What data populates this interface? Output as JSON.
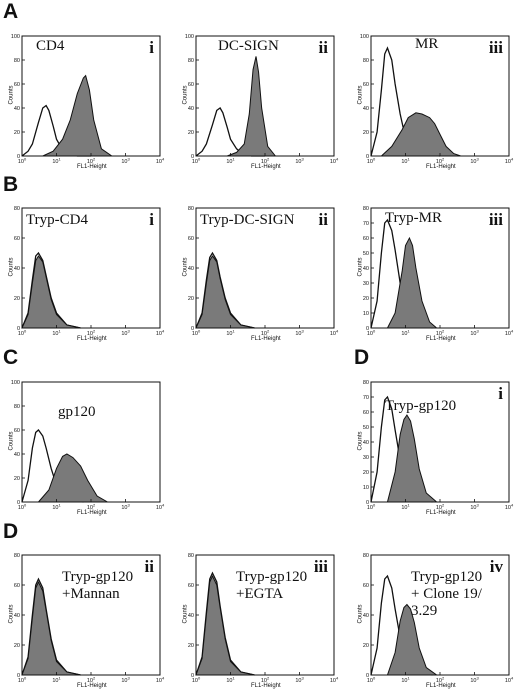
{
  "sections": {
    "A": "A",
    "B": "B",
    "C": "C",
    "D_top": "D",
    "D_bottom": "D"
  },
  "colors": {
    "filled": "#7a7a7a",
    "outline": "#111111"
  },
  "chart_data": [
    {
      "id": "A-i",
      "type": "area",
      "marker": "CD4",
      "roman": "i",
      "xlabel": "FL1-Height",
      "ylabel": "Counts",
      "xscale": "log",
      "xlim": [
        1,
        10000
      ],
      "ylim": [
        0,
        100
      ],
      "yticks": [
        0,
        20,
        40,
        60,
        80,
        100
      ],
      "series": [
        {
          "name": "",
          "style": "outline",
          "x": [
            1,
            1.5,
            2,
            3,
            4,
            5,
            6,
            8,
            10,
            15,
            20,
            40,
            100
          ],
          "values": [
            0,
            4,
            10,
            28,
            40,
            42,
            38,
            25,
            14,
            5,
            2,
            0,
            0
          ]
        },
        {
          "name": "",
          "style": "filled",
          "x": [
            4,
            8,
            15,
            25,
            40,
            60,
            70,
            90,
            120,
            200,
            400
          ],
          "values": [
            0,
            4,
            14,
            30,
            52,
            65,
            67,
            55,
            30,
            6,
            0
          ]
        }
      ]
    },
    {
      "id": "A-ii",
      "type": "area",
      "marker": "DC-SIGN",
      "roman": "ii",
      "xlabel": "FL1-Height",
      "ylabel": "Counts",
      "xscale": "log",
      "xlim": [
        1,
        10000
      ],
      "ylim": [
        0,
        100
      ],
      "yticks": [
        0,
        20,
        40,
        60,
        80,
        100
      ],
      "series": [
        {
          "name": "",
          "style": "outline",
          "x": [
            1,
            1.5,
            2,
            3,
            4,
            5,
            6,
            8,
            10,
            15,
            20,
            40,
            100
          ],
          "values": [
            0,
            4,
            10,
            26,
            38,
            40,
            36,
            24,
            14,
            6,
            3,
            0,
            0
          ]
        },
        {
          "name": "",
          "style": "filled",
          "x": [
            8,
            15,
            25,
            35,
            45,
            55,
            65,
            80,
            120,
            200
          ],
          "values": [
            0,
            3,
            10,
            35,
            72,
            83,
            70,
            40,
            8,
            0
          ]
        }
      ]
    },
    {
      "id": "A-iii",
      "type": "area",
      "marker": "MR",
      "roman": "iii",
      "xlabel": "FL1-Height",
      "ylabel": "Counts",
      "xscale": "log",
      "xlim": [
        1,
        10000
      ],
      "ylim": [
        0,
        100
      ],
      "yticks": [
        0,
        20,
        40,
        60,
        80,
        100
      ],
      "series": [
        {
          "name": "",
          "style": "outline",
          "x": [
            1,
            1.5,
            2,
            2.5,
            3,
            4,
            5,
            7,
            10,
            20,
            40,
            100
          ],
          "values": [
            0,
            20,
            55,
            85,
            90,
            80,
            60,
            35,
            15,
            4,
            1,
            0
          ]
        },
        {
          "name": "",
          "style": "filled",
          "x": [
            2,
            4,
            8,
            12,
            20,
            30,
            50,
            70,
            100,
            150,
            250,
            400
          ],
          "values": [
            0,
            8,
            22,
            32,
            36,
            35,
            32,
            27,
            18,
            8,
            2,
            0
          ]
        }
      ]
    },
    {
      "id": "B-i",
      "type": "area",
      "marker": "Tryp-CD4",
      "roman": "i",
      "xlabel": "FL1-Height",
      "ylabel": "Counts",
      "xscale": "log",
      "xlim": [
        1,
        10000
      ],
      "ylim": [
        0,
        80
      ],
      "yticks": [
        0,
        20,
        40,
        60,
        80
      ],
      "series": [
        {
          "name": "",
          "style": "outline",
          "x": [
            1,
            1.5,
            2,
            2.5,
            3,
            4,
            5,
            7,
            10,
            20,
            50
          ],
          "values": [
            0,
            10,
            32,
            48,
            50,
            45,
            35,
            20,
            10,
            2,
            0
          ]
        },
        {
          "name": "",
          "style": "filled",
          "x": [
            1,
            1.5,
            2,
            2.5,
            3,
            4,
            5,
            7,
            10,
            20,
            50
          ],
          "values": [
            0,
            9,
            30,
            45,
            48,
            44,
            34,
            19,
            9,
            2,
            0
          ]
        }
      ]
    },
    {
      "id": "B-ii",
      "type": "area",
      "marker": "Tryp-DC-SIGN",
      "roman": "ii",
      "xlabel": "FL1-Height",
      "ylabel": "Counts",
      "xscale": "log",
      "xlim": [
        1,
        10000
      ],
      "ylim": [
        0,
        80
      ],
      "yticks": [
        0,
        20,
        40,
        60,
        80
      ],
      "series": [
        {
          "name": "",
          "style": "outline",
          "x": [
            1,
            1.5,
            2,
            2.5,
            3,
            4,
            5,
            7,
            10,
            20,
            50
          ],
          "values": [
            0,
            10,
            32,
            47,
            50,
            45,
            34,
            20,
            10,
            2,
            0
          ]
        },
        {
          "name": "",
          "style": "filled",
          "x": [
            1,
            1.5,
            2,
            2.5,
            3,
            4,
            5,
            7,
            10,
            20,
            50
          ],
          "values": [
            0,
            9,
            30,
            45,
            48,
            44,
            33,
            19,
            9,
            2,
            0
          ]
        }
      ]
    },
    {
      "id": "B-iii",
      "type": "area",
      "marker": "Tryp-MR",
      "roman": "iii",
      "xlabel": "FL1-Height",
      "ylabel": "Counts",
      "xscale": "log",
      "xlim": [
        1,
        10000
      ],
      "ylim": [
        0,
        80
      ],
      "yticks": [
        0,
        10,
        20,
        30,
        40,
        50,
        60,
        70,
        80
      ],
      "series": [
        {
          "name": "",
          "style": "outline",
          "x": [
            1,
            1.5,
            2,
            2.5,
            3,
            4,
            5,
            7,
            10,
            15,
            30,
            60
          ],
          "values": [
            0,
            18,
            50,
            70,
            72,
            65,
            52,
            30,
            14,
            5,
            1,
            0
          ]
        },
        {
          "name": "",
          "style": "filled",
          "x": [
            3,
            5,
            8,
            10,
            13,
            16,
            20,
            30,
            50,
            80
          ],
          "values": [
            0,
            10,
            38,
            55,
            60,
            55,
            40,
            18,
            4,
            0
          ]
        }
      ]
    },
    {
      "id": "C",
      "type": "area",
      "marker": "gp120",
      "roman": "",
      "xlabel": "FL1-Height",
      "ylabel": "Counts",
      "xscale": "log",
      "xlim": [
        1,
        10000
      ],
      "ylim": [
        0,
        100
      ],
      "yticks": [
        0,
        20,
        40,
        60,
        80,
        100
      ],
      "series": [
        {
          "name": "",
          "style": "outline",
          "x": [
            1,
            1.5,
            2,
            2.5,
            3,
            4,
            5,
            7,
            10,
            15,
            30,
            60
          ],
          "values": [
            0,
            18,
            45,
            58,
            60,
            55,
            45,
            28,
            14,
            6,
            1,
            0
          ]
        },
        {
          "name": "",
          "style": "filled",
          "x": [
            3,
            6,
            10,
            15,
            20,
            30,
            50,
            80,
            150,
            300
          ],
          "values": [
            0,
            10,
            28,
            38,
            40,
            37,
            30,
            18,
            5,
            0
          ]
        }
      ]
    },
    {
      "id": "D-i",
      "type": "area",
      "marker": "Tryp-gp120",
      "roman": "i",
      "xlabel": "FL1-Height",
      "ylabel": "Counts",
      "xscale": "log",
      "xlim": [
        1,
        10000
      ],
      "ylim": [
        0,
        80
      ],
      "yticks": [
        0,
        10,
        20,
        30,
        40,
        50,
        60,
        70,
        80
      ],
      "series": [
        {
          "name": "",
          "style": "outline",
          "x": [
            1,
            1.5,
            2,
            2.5,
            3,
            4,
            5,
            7,
            10,
            15,
            30,
            60
          ],
          "values": [
            0,
            20,
            50,
            68,
            70,
            62,
            48,
            28,
            14,
            5,
            1,
            0
          ]
        },
        {
          "name": "",
          "style": "filled",
          "x": [
            3,
            5,
            7,
            9,
            11,
            14,
            18,
            25,
            40,
            80
          ],
          "values": [
            0,
            20,
            45,
            55,
            58,
            54,
            42,
            22,
            6,
            0
          ]
        }
      ]
    },
    {
      "id": "D-ii",
      "type": "area",
      "marker": "Tryp-gp120\n+Mannan",
      "roman": "ii",
      "xlabel": "FL1-Height",
      "ylabel": "Counts",
      "xscale": "log",
      "xlim": [
        1,
        10000
      ],
      "ylim": [
        0,
        80
      ],
      "yticks": [
        0,
        20,
        40,
        60,
        80
      ],
      "series": [
        {
          "name": "",
          "style": "outline",
          "x": [
            1,
            1.5,
            2,
            2.5,
            3,
            4,
            5,
            7,
            10,
            20,
            50
          ],
          "values": [
            0,
            12,
            40,
            60,
            64,
            58,
            44,
            24,
            10,
            2,
            0
          ]
        },
        {
          "name": "",
          "style": "filled",
          "x": [
            1,
            1.5,
            2,
            2.5,
            3,
            4,
            5,
            7,
            10,
            20,
            50
          ],
          "values": [
            0,
            11,
            38,
            58,
            62,
            56,
            43,
            23,
            9,
            2,
            0
          ]
        }
      ]
    },
    {
      "id": "D-iii",
      "type": "area",
      "marker": "Tryp-gp120\n+EGTA",
      "roman": "iii",
      "xlabel": "FL1-Height",
      "ylabel": "Counts",
      "xscale": "log",
      "xlim": [
        1,
        10000
      ],
      "ylim": [
        0,
        80
      ],
      "yticks": [
        0,
        20,
        40,
        60,
        80
      ],
      "series": [
        {
          "name": "",
          "style": "outline",
          "x": [
            1,
            1.5,
            2,
            2.5,
            3,
            4,
            5,
            7,
            10,
            20,
            50
          ],
          "values": [
            0,
            12,
            42,
            64,
            68,
            62,
            46,
            25,
            10,
            2,
            0
          ]
        },
        {
          "name": "",
          "style": "filled",
          "x": [
            1,
            1.5,
            2,
            2.5,
            3,
            4,
            5,
            7,
            10,
            20,
            50
          ],
          "values": [
            0,
            11,
            40,
            62,
            66,
            60,
            45,
            24,
            9,
            2,
            0
          ]
        }
      ]
    },
    {
      "id": "D-iv",
      "type": "area",
      "marker": "Tryp-gp120\n+ Clone 19/\n3.29",
      "roman": "iv",
      "xlabel": "FL1-Height",
      "ylabel": "Counts",
      "xscale": "log",
      "xlim": [
        1,
        10000
      ],
      "ylim": [
        0,
        80
      ],
      "yticks": [
        0,
        20,
        40,
        60,
        80
      ],
      "series": [
        {
          "name": "",
          "style": "outline",
          "x": [
            1,
            1.5,
            2,
            2.5,
            3,
            4,
            5,
            7,
            10,
            15,
            30,
            60
          ],
          "values": [
            0,
            18,
            48,
            64,
            66,
            58,
            44,
            25,
            12,
            5,
            1,
            0
          ]
        },
        {
          "name": "",
          "style": "filled",
          "x": [
            3,
            5,
            7,
            9,
            11,
            14,
            18,
            25,
            40,
            80
          ],
          "values": [
            0,
            15,
            36,
            45,
            47,
            44,
            35,
            18,
            5,
            0
          ]
        }
      ]
    }
  ]
}
